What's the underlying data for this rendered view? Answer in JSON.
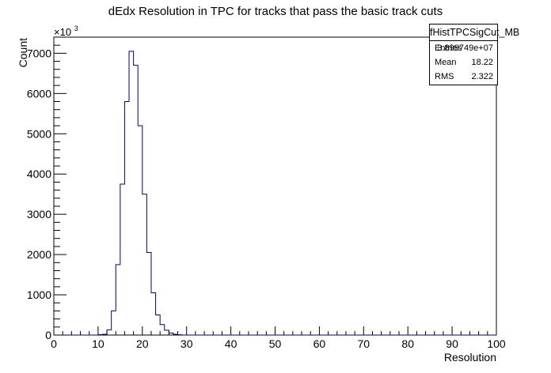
{
  "chart_data": {
    "type": "bar",
    "style": "step-histogram",
    "title": "dEdx Resolution in TPC for tracks that pass the basic track cuts",
    "xlabel": "Resolution",
    "ylabel": "Count",
    "y_multiplier_label": "×10",
    "y_multiplier_exp": "3",
    "xlim": [
      0,
      100
    ],
    "ylim": [
      0,
      7400
    ],
    "x_ticks": [
      "0",
      "10",
      "20",
      "30",
      "40",
      "50",
      "60",
      "70",
      "80",
      "90",
      "100"
    ],
    "y_ticks": [
      "0",
      "1000",
      "2000",
      "3000",
      "4000",
      "5000",
      "6000",
      "7000"
    ],
    "bin_width": 1,
    "x": [
      10,
      11,
      12,
      13,
      14,
      15,
      16,
      17,
      18,
      19,
      20,
      21,
      22,
      23,
      24,
      25,
      26,
      27,
      28
    ],
    "values": [
      10,
      20,
      130,
      600,
      1750,
      3750,
      5800,
      7050,
      6700,
      5200,
      3500,
      2050,
      1050,
      500,
      260,
      120,
      50,
      20,
      8
    ],
    "line_color": "#000080",
    "grid": false
  },
  "stats_box": {
    "name": "fHistTPCSigCut_MB",
    "rows": [
      {
        "key": "Entries",
        "value": "3.899749e+07"
      },
      {
        "key": "Mean",
        "value": "18.22"
      },
      {
        "key": "RMS",
        "value": "2.322"
      }
    ]
  }
}
